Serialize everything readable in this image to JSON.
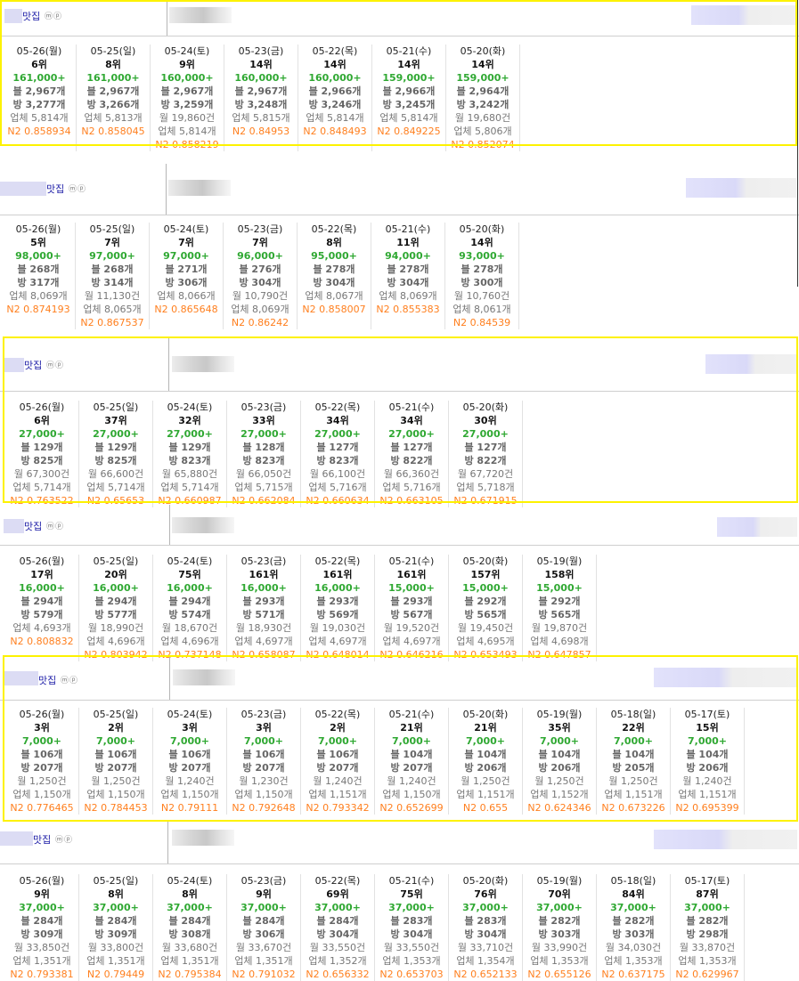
{
  "sections": [
    {
      "suffix": "맛집",
      "icons": "ⓜⓟ",
      "rows": [
        [
          "05-26(월)",
          "6위",
          "161,000+",
          "블 2,967개",
          "방 3,277개",
          "업체 5,814개",
          "",
          "N2 0.858934"
        ],
        [
          "05-25(일)",
          "8위",
          "161,000+",
          "블 2,967개",
          "방 3,266개",
          "업체 5,813개",
          "",
          "N2 0.858045"
        ],
        [
          "05-24(토)",
          "9위",
          "160,000+",
          "블 2,967개",
          "방 3,259개",
          "월 19,860건",
          "업체 5,814개",
          "N2 0.858219"
        ],
        [
          "05-23(금)",
          "14위",
          "160,000+",
          "블 2,967개",
          "방 3,248개",
          "업체 5,815개",
          "",
          "N2 0.84953"
        ],
        [
          "05-22(목)",
          "14위",
          "160,000+",
          "블 2,966개",
          "방 3,246개",
          "업체 5,814개",
          "",
          "N2 0.848493"
        ],
        [
          "05-21(수)",
          "14위",
          "159,000+",
          "블 2,966개",
          "방 3,245개",
          "업체 5,814개",
          "",
          "N2 0.849225"
        ],
        [
          "05-20(화)",
          "14위",
          "159,000+",
          "블 2,964개",
          "방 3,242개",
          "월 19,680건",
          "업체 5,806개",
          "N2 0.852074"
        ]
      ]
    },
    {
      "suffix": "맛집",
      "icons": "ⓜⓟ",
      "rows": [
        [
          "05-26(월)",
          "5위",
          "98,000+",
          "블 268개",
          "방 317개",
          "업체 8,069개",
          "",
          "N2 0.874193"
        ],
        [
          "05-25(일)",
          "7위",
          "97,000+",
          "블 268개",
          "방 314개",
          "월 11,130건",
          "업체 8,065개",
          "N2 0.867537"
        ],
        [
          "05-24(토)",
          "7위",
          "97,000+",
          "블 271개",
          "방 306개",
          "업체 8,066개",
          "",
          "N2 0.865648"
        ],
        [
          "05-23(금)",
          "7위",
          "96,000+",
          "블 276개",
          "방 304개",
          "월 10,790건",
          "업체 8,069개",
          "N2 0.86242"
        ],
        [
          "05-22(목)",
          "8위",
          "95,000+",
          "블 278개",
          "방 304개",
          "업체 8,067개",
          "",
          "N2 0.858007"
        ],
        [
          "05-21(수)",
          "11위",
          "94,000+",
          "블 278개",
          "방 304개",
          "업체 8,069개",
          "",
          "N2 0.855383"
        ],
        [
          "05-20(화)",
          "14위",
          "93,000+",
          "블 278개",
          "방 300개",
          "월 10,760건",
          "업체 8,061개",
          "N2 0.84539"
        ]
      ]
    },
    {
      "suffix": "맛집",
      "icons": "ⓜⓟ",
      "rows": [
        [
          "05-26(월)",
          "6위",
          "27,000+",
          "블 129개",
          "방 825개",
          "월 67,300건",
          "업체 5,714개",
          "N2 0.763522"
        ],
        [
          "05-25(일)",
          "37위",
          "27,000+",
          "블 129개",
          "방 825개",
          "월 66,600건",
          "업체 5,714개",
          "N2 0.65653"
        ],
        [
          "05-24(토)",
          "32위",
          "27,000+",
          "블 129개",
          "방 823개",
          "월 65,880건",
          "업체 5,714개",
          "N2 0.660987"
        ],
        [
          "05-23(금)",
          "33위",
          "27,000+",
          "블 128개",
          "방 823개",
          "월 66,050건",
          "업체 5,715개",
          "N2 0.662084"
        ],
        [
          "05-22(목)",
          "34위",
          "27,000+",
          "블 127개",
          "방 823개",
          "월 66,100건",
          "업체 5,716개",
          "N2 0.660634"
        ],
        [
          "05-21(수)",
          "34위",
          "27,000+",
          "블 127개",
          "방 822개",
          "월 66,360건",
          "업체 5,716개",
          "N2 0.663105"
        ],
        [
          "05-20(화)",
          "30위",
          "27,000+",
          "블 127개",
          "방 822개",
          "월 67,720건",
          "업체 5,718개",
          "N2 0.671915"
        ]
      ]
    },
    {
      "suffix": "맛집",
      "icons": "ⓜⓟ",
      "rows": [
        [
          "05-26(월)",
          "17위",
          "16,000+",
          "블 294개",
          "방 579개",
          "업체 4,693개",
          "",
          "N2 0.808832"
        ],
        [
          "05-25(일)",
          "20위",
          "16,000+",
          "블 294개",
          "방 577개",
          "월 18,990건",
          "업체 4,696개",
          "N2 0.803942"
        ],
        [
          "05-24(토)",
          "75위",
          "16,000+",
          "블 294개",
          "방 574개",
          "월 18,670건",
          "업체 4,696개",
          "N2 0.737148"
        ],
        [
          "05-23(금)",
          "161위",
          "16,000+",
          "블 293개",
          "방 571개",
          "월 18,930건",
          "업체 4,697개",
          "N2 0.658087"
        ],
        [
          "05-22(목)",
          "161위",
          "16,000+",
          "블 293개",
          "방 569개",
          "월 19,030건",
          "업체 4,697개",
          "N2 0.648014"
        ],
        [
          "05-21(수)",
          "161위",
          "15,000+",
          "블 293개",
          "방 567개",
          "월 19,520건",
          "업체 4,697개",
          "N2 0.646216"
        ],
        [
          "05-20(화)",
          "157위",
          "15,000+",
          "블 292개",
          "방 565개",
          "월 19,450건",
          "업체 4,695개",
          "N2 0.653493"
        ],
        [
          "05-19(월)",
          "158위",
          "15,000+",
          "블 292개",
          "방 565개",
          "월 19,870건",
          "업체 4,698개",
          "N2 0.647857"
        ]
      ]
    },
    {
      "suffix": "맛집",
      "icons": "ⓜⓟ",
      "rows": [
        [
          "05-26(월)",
          "3위",
          "7,000+",
          "블 106개",
          "방 207개",
          "월 1,250건",
          "업체 1,150개",
          "N2 0.776465"
        ],
        [
          "05-25(일)",
          "2위",
          "7,000+",
          "블 106개",
          "방 207개",
          "월 1,250건",
          "업체 1,150개",
          "N2 0.784453"
        ],
        [
          "05-24(토)",
          "3위",
          "7,000+",
          "블 106개",
          "방 207개",
          "월 1,240건",
          "업체 1,150개",
          "N2 0.79111"
        ],
        [
          "05-23(금)",
          "3위",
          "7,000+",
          "블 106개",
          "방 207개",
          "월 1,230건",
          "업체 1,150개",
          "N2 0.792648"
        ],
        [
          "05-22(목)",
          "2위",
          "7,000+",
          "블 106개",
          "방 207개",
          "월 1,240건",
          "업체 1,151개",
          "N2 0.793342"
        ],
        [
          "05-21(수)",
          "21위",
          "7,000+",
          "블 104개",
          "방 207개",
          "월 1,240건",
          "업체 1,150개",
          "N2 0.652699"
        ],
        [
          "05-20(화)",
          "21위",
          "7,000+",
          "블 104개",
          "방 206개",
          "월 1,250건",
          "업체 1,151개",
          "N2 0.655"
        ],
        [
          "05-19(월)",
          "35위",
          "7,000+",
          "블 104개",
          "방 206개",
          "월 1,250건",
          "업체 1,152개",
          "N2 0.624346"
        ],
        [
          "05-18(일)",
          "22위",
          "7,000+",
          "블 104개",
          "방 205개",
          "월 1,250건",
          "업체 1,151개",
          "N2 0.673226"
        ],
        [
          "05-17(토)",
          "15위",
          "7,000+",
          "블 104개",
          "방 206개",
          "월 1,240건",
          "업체 1,151개",
          "N2 0.695399"
        ]
      ]
    },
    {
      "suffix": "맛집",
      "icons": "ⓜⓟ",
      "rows": [
        [
          "05-26(월)",
          "9위",
          "37,000+",
          "블 284개",
          "방 309개",
          "월 33,850건",
          "업체 1,351개",
          "N2 0.793381"
        ],
        [
          "05-25(일)",
          "8위",
          "37,000+",
          "블 284개",
          "방 309개",
          "월 33,800건",
          "업체 1,351개",
          "N2 0.79449"
        ],
        [
          "05-24(토)",
          "8위",
          "37,000+",
          "블 284개",
          "방 308개",
          "월 33,680건",
          "업체 1,351개",
          "N2 0.795384"
        ],
        [
          "05-23(금)",
          "9위",
          "37,000+",
          "블 284개",
          "방 306개",
          "월 33,670건",
          "업체 1,351개",
          "N2 0.791032"
        ],
        [
          "05-22(목)",
          "69위",
          "37,000+",
          "블 284개",
          "방 304개",
          "월 33,550건",
          "업체 1,352개",
          "N2 0.656332"
        ],
        [
          "05-21(수)",
          "75위",
          "37,000+",
          "블 283개",
          "방 304개",
          "월 33,550건",
          "업체 1,353개",
          "N2 0.653703"
        ],
        [
          "05-20(화)",
          "76위",
          "37,000+",
          "블 283개",
          "방 304개",
          "월 33,710건",
          "업체 1,354개",
          "N2 0.652133"
        ],
        [
          "05-19(월)",
          "70위",
          "37,000+",
          "블 282개",
          "방 303개",
          "월 33,990건",
          "업체 1,353개",
          "N2 0.655126"
        ],
        [
          "05-18(일)",
          "84위",
          "37,000+",
          "블 282개",
          "방 303개",
          "월 34,030건",
          "업체 1,353개",
          "N2 0.637175"
        ],
        [
          "05-17(토)",
          "87위",
          "37,000+",
          "블 282개",
          "방 298개",
          "월 33,870건",
          "업체 1,353개",
          "N2 0.629967"
        ]
      ]
    }
  ]
}
